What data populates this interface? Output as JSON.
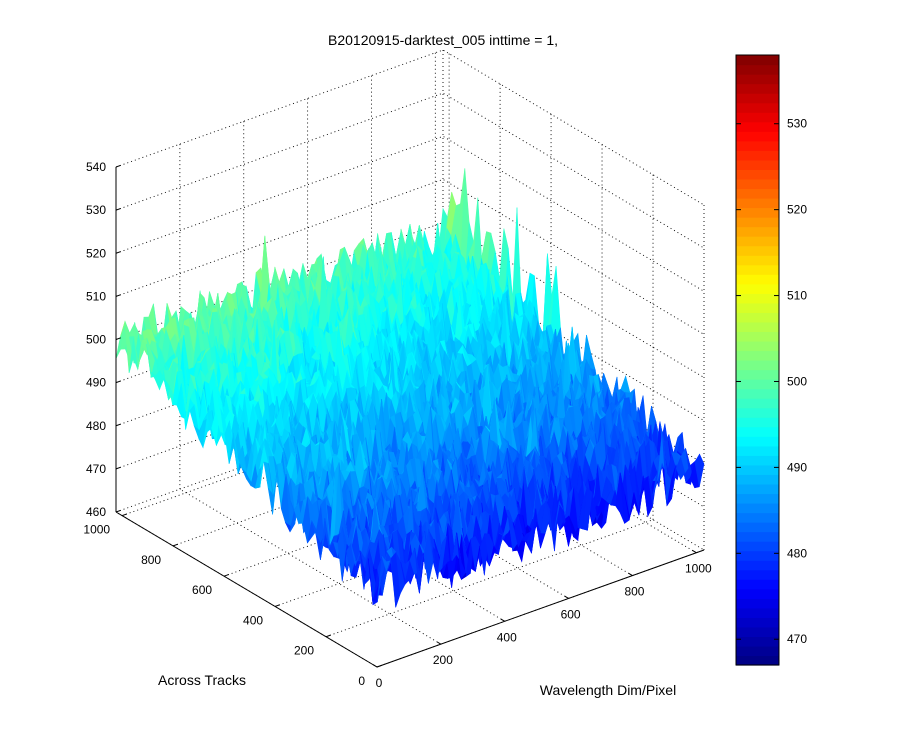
{
  "chart_data": {
    "type": "surface",
    "title": "B20120915-darktest_005 inttime = 1,",
    "xlabel": "Wavelength Dim/Pixel",
    "ylabel": "Across Tracks",
    "zlabel": "",
    "x_ticks": [
      0,
      200,
      400,
      600,
      800,
      1000
    ],
    "y_ticks": [
      0,
      200,
      400,
      600,
      800,
      1000
    ],
    "z_ticks": [
      460,
      470,
      480,
      490,
      500,
      510,
      520,
      530,
      540
    ],
    "xlim": [
      0,
      1024
    ],
    "ylim": [
      0,
      1024
    ],
    "zlim": [
      460,
      540
    ],
    "colormap": "jet",
    "colorbar": {
      "clim": [
        467,
        538
      ],
      "ticks": [
        470,
        480,
        490,
        500,
        510,
        520,
        530
      ]
    },
    "grid": true,
    "surface_summary": {
      "x0_y0": 478,
      "x1024_y0": 478,
      "x0_y1024": 500,
      "x1024_y1024": 497,
      "noise_amplitude": 6
    }
  }
}
